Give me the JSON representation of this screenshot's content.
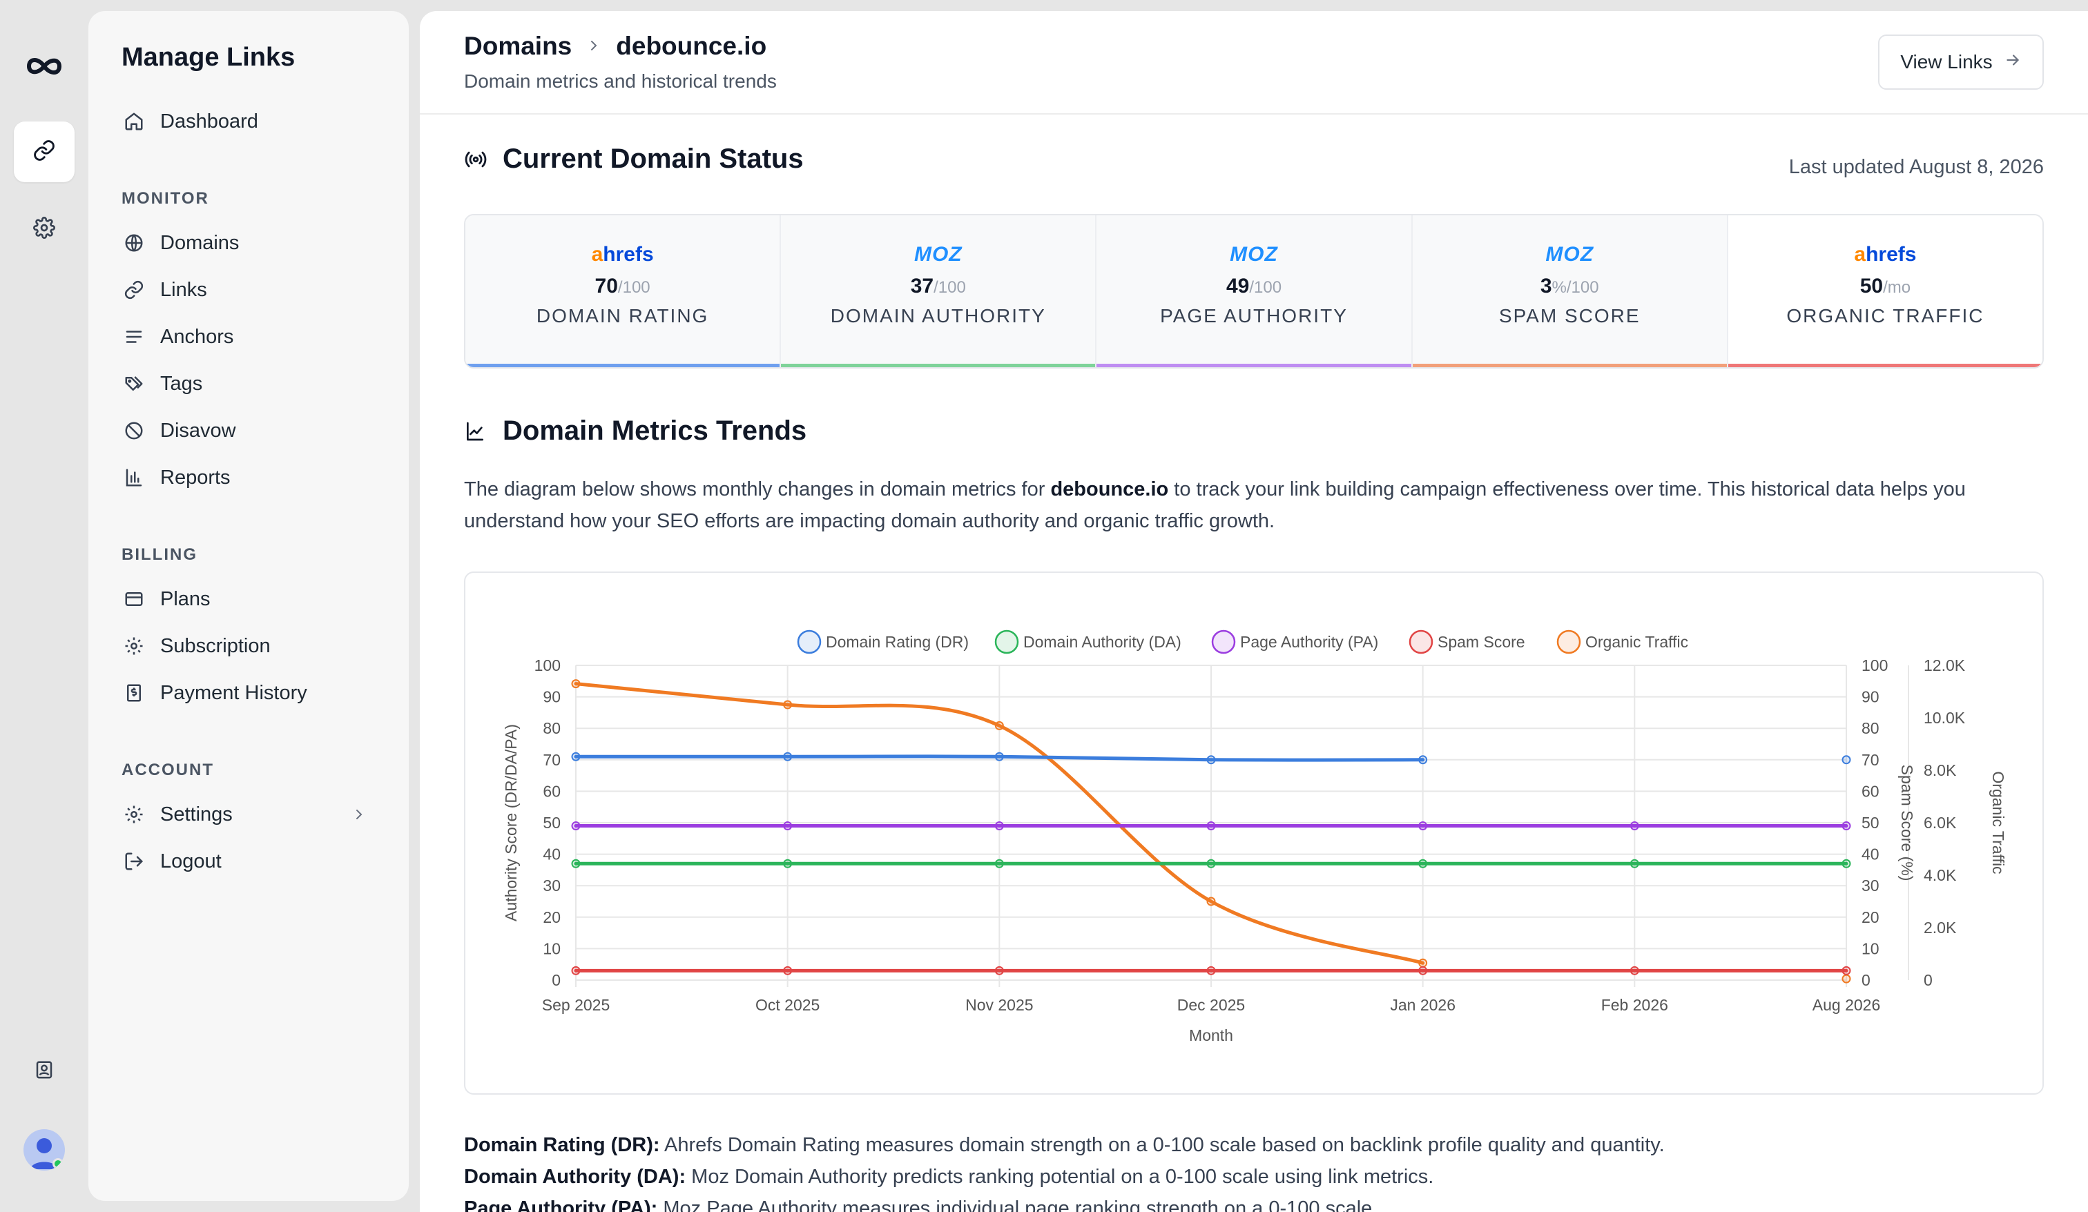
{
  "rail": {
    "logo_icon": "infinity-logo-icon",
    "items": [
      {
        "icon": "link-icon",
        "active": true
      },
      {
        "icon": "gear-icon",
        "active": false
      }
    ],
    "bottom_icon": "contact-book-icon"
  },
  "sidebar": {
    "title": "Manage Links",
    "dashboard": "Dashboard",
    "sections": [
      {
        "label": "MONITOR",
        "items": [
          "Domains",
          "Links",
          "Anchors",
          "Tags",
          "Disavow",
          "Reports"
        ]
      },
      {
        "label": "BILLING",
        "items": [
          "Plans",
          "Subscription",
          "Payment History"
        ]
      },
      {
        "label": "ACCOUNT",
        "items": [
          "Settings",
          "Logout"
        ]
      }
    ]
  },
  "header": {
    "crumb_parent": "Domains",
    "crumb_current": "debounce.io",
    "subtitle": "Domain metrics and historical trends",
    "view_links": "View Links"
  },
  "status": {
    "title": "Current Domain Status",
    "last_updated": "Last updated August 8, 2026",
    "cards": [
      {
        "brand": "ahrefs",
        "value": "70",
        "unit": "/100",
        "label": "DOMAIN RATING",
        "color": "#6fa0ef"
      },
      {
        "brand": "MOZ",
        "value": "37",
        "unit": "/100",
        "label": "DOMAIN AUTHORITY",
        "color": "#7fd39a"
      },
      {
        "brand": "MOZ",
        "value": "49",
        "unit": "/100",
        "label": "PAGE AUTHORITY",
        "color": "#bf8ef2"
      },
      {
        "brand": "MOZ",
        "value": "3",
        "unit": "%/100",
        "label": "SPAM SCORE",
        "color": "#f2a07a"
      },
      {
        "brand": "ahrefs",
        "value": "50",
        "unit": "/mo",
        "label": "ORGANIC TRAFFIC",
        "color": "#ef7777"
      }
    ]
  },
  "trends": {
    "title": "Domain Metrics Trends",
    "desc_before": "The diagram below shows monthly changes in domain metrics for ",
    "desc_domain": "debounce.io",
    "desc_after": " to track your link building campaign effectiveness over time. This historical data helps you understand how your SEO efforts are impacting domain authority and organic traffic growth."
  },
  "chart_data": {
    "type": "line",
    "categories": [
      "Sep 2025",
      "Oct 2025",
      "Nov 2025",
      "Dec 2025",
      "Jan 2026",
      "Feb 2026",
      "Aug 2026"
    ],
    "xlabel": "Month",
    "ylabel_left": "Authority Score (DR/DA/PA)",
    "ylabel_right1": "Spam Score (%)",
    "ylabel_right2": "Organic Traffic",
    "ylim_left": [
      0,
      100
    ],
    "ylim_right1": [
      0,
      100
    ],
    "ylim_right2": [
      0,
      12000
    ],
    "left_ticks": [
      "0",
      "10",
      "20",
      "30",
      "40",
      "50",
      "60",
      "70",
      "80",
      "90",
      "100"
    ],
    "right1_ticks": [
      "0",
      "10",
      "20",
      "30",
      "40",
      "50",
      "60",
      "70",
      "80",
      "90",
      "100"
    ],
    "right2_ticks": [
      "0",
      "2.0K",
      "4.0K",
      "6.0K",
      "8.0K",
      "10.0K",
      "12.0K"
    ],
    "grid": true,
    "legend_position": "top",
    "series": [
      {
        "name": "Domain Rating (DR)",
        "color": "#3b7ddd",
        "axis": "left",
        "values": [
          71,
          71,
          71,
          70,
          70,
          null,
          70
        ]
      },
      {
        "name": "Domain Authority (DA)",
        "color": "#2bb55a",
        "axis": "left",
        "values": [
          37,
          37,
          37,
          37,
          37,
          37,
          37
        ]
      },
      {
        "name": "Page Authority (PA)",
        "color": "#9b3de0",
        "axis": "left",
        "values": [
          49,
          49,
          49,
          49,
          49,
          49,
          49
        ]
      },
      {
        "name": "Spam Score",
        "color": "#e14545",
        "axis": "right1",
        "values": [
          3,
          3,
          3,
          3,
          3,
          3,
          3
        ]
      },
      {
        "name": "Organic Traffic",
        "color": "#f07a22",
        "axis": "right2",
        "values": [
          11300,
          10500,
          9700,
          3000,
          650,
          null,
          50
        ]
      }
    ]
  },
  "definitions": [
    {
      "term": "Domain Rating (DR):",
      "text": " Ahrefs Domain Rating measures domain strength on a 0-100 scale based on backlink profile quality and quantity."
    },
    {
      "term": "Domain Authority (DA):",
      "text": " Moz Domain Authority predicts ranking potential on a 0-100 scale using link metrics."
    },
    {
      "term": "Page Authority (PA):",
      "text": " Moz Page Authority measures individual page ranking strength on a 0-100 scale."
    }
  ]
}
